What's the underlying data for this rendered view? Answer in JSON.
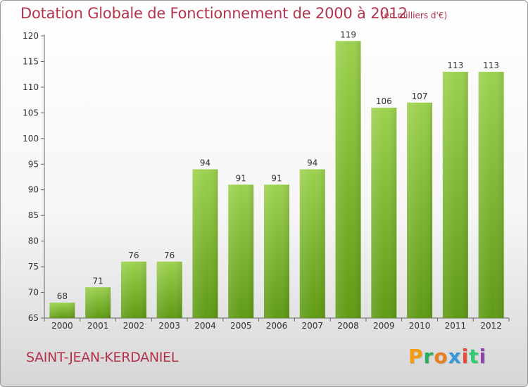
{
  "header": {
    "title": "Dotation Globale de Fonctionnement de 2000 à 2012",
    "unit": "(en milliers d'€)"
  },
  "footer": {
    "commune": "SAINT-JEAN-KERDANIEL",
    "logo": [
      "P",
      "r",
      "o",
      "x",
      "i",
      "t",
      "i"
    ],
    "logo_colors": [
      "#f39c12",
      "#27ae60",
      "#e67e22",
      "#3498db",
      "#e74c3c",
      "#2ecc71",
      "#8e44ad"
    ]
  },
  "chart_data": {
    "type": "bar",
    "title": "Dotation Globale de Fonctionnement de 2000 à 2012",
    "subtitle": "(en milliers d'€)",
    "xlabel": "",
    "ylabel": "",
    "categories": [
      "2000",
      "2001",
      "2002",
      "2003",
      "2004",
      "2005",
      "2006",
      "2007",
      "2008",
      "2009",
      "2010",
      "2011",
      "2012"
    ],
    "values": [
      68,
      71,
      76,
      76,
      94,
      91,
      91,
      94,
      119,
      106,
      107,
      113,
      113
    ],
    "ylim": [
      65,
      120
    ],
    "yticks": [
      65,
      70,
      75,
      80,
      85,
      90,
      95,
      100,
      105,
      110,
      115,
      120
    ],
    "grid": false,
    "bar_color": "#7bb82e"
  }
}
